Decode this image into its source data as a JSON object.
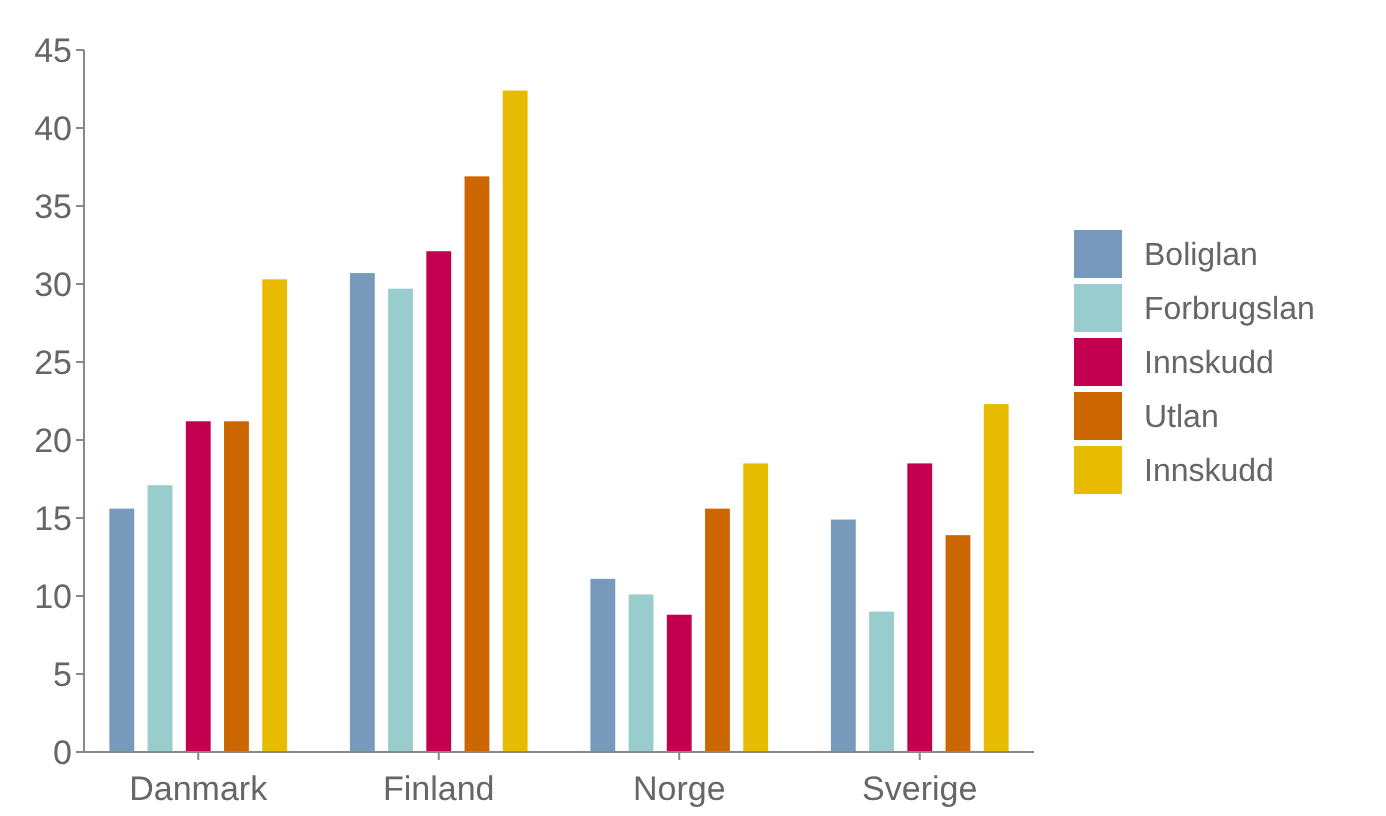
{
  "chart_data": {
    "type": "bar",
    "categories": [
      "Danmark",
      "Finland",
      "Norge",
      "Sverige"
    ],
    "series": [
      {
        "name": "Boliglan",
        "color": "#7799bb",
        "values": [
          15.6,
          30.7,
          11.1,
          14.9
        ]
      },
      {
        "name": "Forbrugslan",
        "color": "#99cccc",
        "values": [
          17.1,
          29.7,
          10.1,
          9.0
        ]
      },
      {
        "name": "Innskudd",
        "color": "#c2004f",
        "values": [
          21.2,
          32.1,
          8.8,
          18.5
        ]
      },
      {
        "name": "Utlan",
        "color": "#cc6600",
        "values": [
          21.2,
          36.9,
          15.6,
          13.9
        ]
      },
      {
        "name": "Innskudd",
        "color": "#e6bb00",
        "values": [
          30.3,
          42.4,
          18.5,
          22.3
        ]
      }
    ],
    "ylim": [
      0,
      45
    ],
    "yticks": [
      0,
      5,
      10,
      15,
      20,
      25,
      30,
      35,
      40,
      45
    ],
    "grid": false,
    "legend": "right"
  }
}
